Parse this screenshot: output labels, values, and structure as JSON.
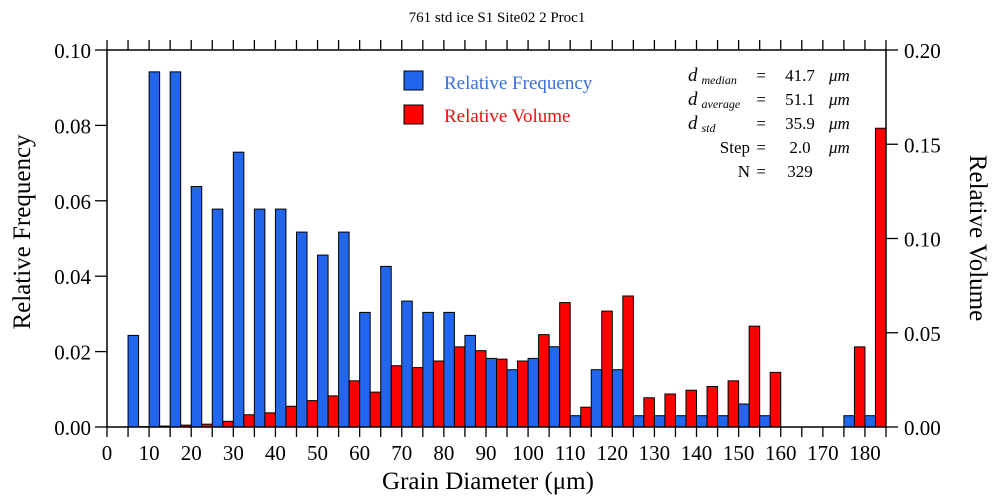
{
  "chart_data": {
    "type": "bar",
    "title": "761 std ice S1 Site02 2 Proc1",
    "xlabel": "Grain Diameter (μm)",
    "ylabel": "Relative Frequency",
    "y2label": "Relative Volume",
    "xlim": [
      0,
      185
    ],
    "ylim": [
      0,
      0.1
    ],
    "y2lim": [
      0,
      0.2
    ],
    "grid": false,
    "legend_position": "top-center",
    "x_ticks": [
      "0",
      "10",
      "20",
      "30",
      "40",
      "50",
      "60",
      "70",
      "80",
      "90",
      "100",
      "110",
      "120",
      "130",
      "140",
      "150",
      "160",
      "170",
      "180"
    ],
    "y_ticks": [
      "0.00",
      "0.02",
      "0.04",
      "0.06",
      "0.08",
      "0.10"
    ],
    "y2_ticks": [
      "0.00",
      "0.05",
      "0.10",
      "0.15",
      "0.20"
    ],
    "bin_starts": [
      5,
      10,
      15,
      20,
      25,
      30,
      35,
      40,
      45,
      50,
      55,
      60,
      65,
      70,
      75,
      80,
      85,
      90,
      95,
      100,
      105,
      110,
      115,
      120,
      125,
      130,
      135,
      140,
      145,
      150,
      155,
      160,
      165,
      170,
      175,
      180
    ],
    "bin_width": 5,
    "series": [
      {
        "name": "Relative Frequency",
        "color": "#2266ee",
        "axis": "left",
        "values": [
          0.0243,
          0.0942,
          0.0942,
          0.0638,
          0.0578,
          0.0729,
          0.0578,
          0.0578,
          0.0517,
          0.0456,
          0.0517,
          0.0304,
          0.0426,
          0.0334,
          0.0304,
          0.0304,
          0.0243,
          0.0182,
          0.0152,
          0.0182,
          0.0213,
          0.003,
          0.0152,
          0.0152,
          0.003,
          0.003,
          0.003,
          0.003,
          0.003,
          0.0061,
          0.003,
          0,
          0,
          0,
          0.003,
          0.003
        ]
      },
      {
        "name": "Relative Volume",
        "color": "#ff0000",
        "axis": "right",
        "values": [
          0.0002,
          0.0005,
          0.001,
          0.0015,
          0.003,
          0.0065,
          0.0075,
          0.011,
          0.014,
          0.0165,
          0.0245,
          0.0185,
          0.0325,
          0.0315,
          0.035,
          0.0425,
          0.0405,
          0.036,
          0.035,
          0.049,
          0.066,
          0.0105,
          0.0615,
          0.0695,
          0.0155,
          0.0175,
          0.0195,
          0.0215,
          0.0245,
          0.0535,
          0.029,
          0,
          0,
          0,
          0.0425,
          0.1585
        ]
      }
    ],
    "annotations": [
      {
        "label": "d",
        "sub": "median",
        "eq": "=",
        "value": "41.7",
        "unit": "μm"
      },
      {
        "label": "d",
        "sub": "average",
        "eq": "=",
        "value": "51.1",
        "unit": "μm"
      },
      {
        "label": "d",
        "sub": "std",
        "eq": "=",
        "value": "35.9",
        "unit": "μm"
      },
      {
        "label": "Step",
        "sub": "",
        "eq": "=",
        "value": "2.0",
        "unit": "μm"
      },
      {
        "label": "N",
        "sub": "",
        "eq": "=",
        "value": "329",
        "unit": ""
      }
    ]
  }
}
